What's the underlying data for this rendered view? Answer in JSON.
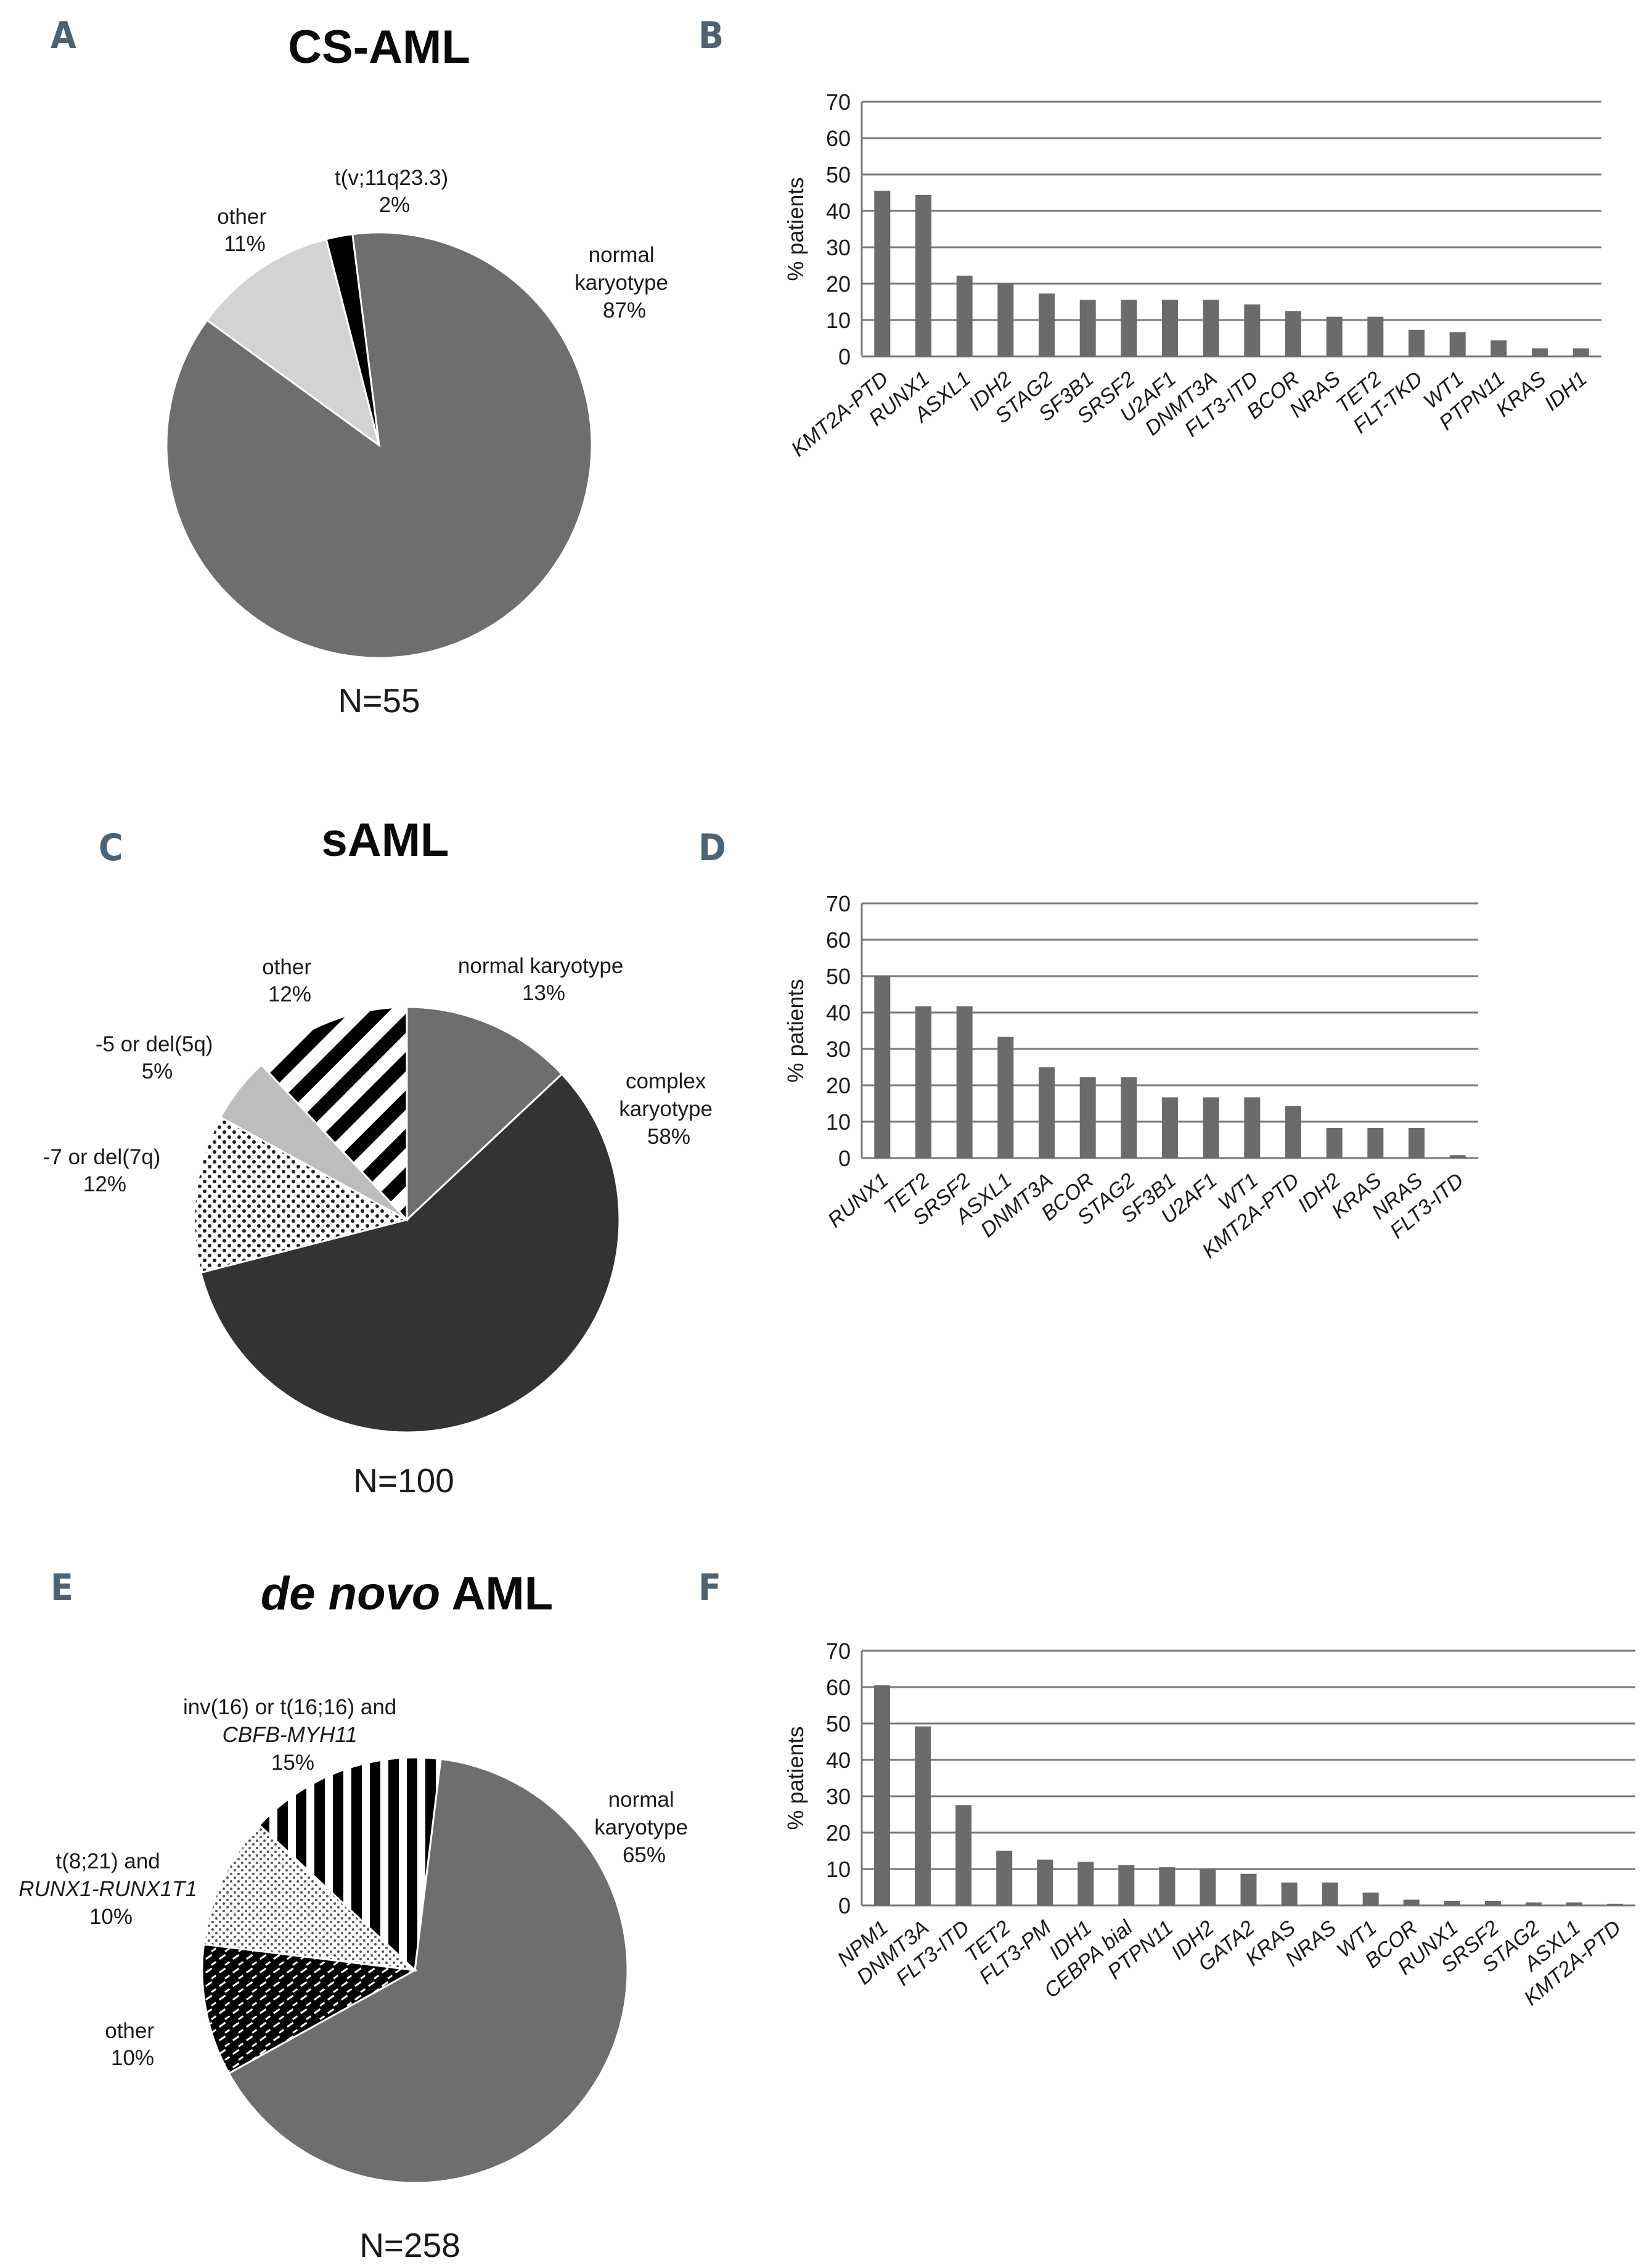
{
  "colors": {
    "bar": "#6b6b6b",
    "grid": "#7a7a7a",
    "pie_normal": "#6e6e6e",
    "pie_dark": "#333333",
    "pie_light": "#d3d3d3",
    "pie_black": "#000000",
    "pie_silver": "#bdbdbd",
    "panel_letter": "#4e6272"
  },
  "panels": {
    "a": {
      "letter": "A"
    },
    "b": {
      "letter": "B"
    },
    "c": {
      "letter": "C"
    },
    "d": {
      "letter": "D"
    },
    "e": {
      "letter": "E"
    },
    "f": {
      "letter": "F"
    }
  },
  "pie_a": {
    "title": "CS-AML",
    "n": "N=55",
    "slices": [
      {
        "name": "normal karyotype",
        "value": 87,
        "fill": "normal"
      },
      {
        "name": "other",
        "value": 11,
        "fill": "light"
      },
      {
        "name": "t(v;11q23.3)",
        "value": 2,
        "fill": "black"
      }
    ],
    "labels": {
      "normal_1": "normal",
      "normal_2": "karyotype",
      "normal_pct": "87%",
      "other_1": "other",
      "other_pct": "11%",
      "tv_1": "t(v;11q23.3)",
      "tv_pct": "2%"
    }
  },
  "pie_c": {
    "title": "sAML",
    "n": "N=100",
    "slices": [
      {
        "name": "normal karyotype",
        "value": 13,
        "fill": "normal"
      },
      {
        "name": "complex karyotype",
        "value": 58,
        "fill": "dark"
      },
      {
        "name": "-7 or del(7q)",
        "value": 12,
        "fill": "dots"
      },
      {
        "name": "-5 or del(5q)",
        "value": 5,
        "fill": "silver"
      },
      {
        "name": "other",
        "value": 12,
        "fill": "stripes"
      }
    ],
    "labels": {
      "normal_1": "normal karyotype",
      "normal_pct": "13%",
      "complex_1": "complex",
      "complex_2": "karyotype",
      "complex_pct": "58%",
      "del7_1": "-7 or del(7q)",
      "del7_pct": "12%",
      "del5_1": "-5 or del(5q)",
      "del5_pct": "5%",
      "other_1": "other",
      "other_pct": "12%"
    }
  },
  "pie_e": {
    "title_italic": "de novo",
    "title_rest": " AML",
    "n": "N=258",
    "slices": [
      {
        "name": "normal karyotype",
        "value": 65,
        "fill": "normal"
      },
      {
        "name": "other",
        "value": 10,
        "fill": "blackdots"
      },
      {
        "name": "t(8;21) and RUNX1-RUNX1T1",
        "value": 10,
        "fill": "fine"
      },
      {
        "name": "inv(16) or t(16;16) and CBFB-MYH11",
        "value": 15,
        "fill": "vstripes"
      }
    ],
    "labels": {
      "normal_1": "normal",
      "normal_2": "karyotype",
      "normal_pct": "65%",
      "other_1": "other",
      "other_pct": "10%",
      "t821_1": "t(8;21) and",
      "t821_2": "RUNX1-RUNX1T1",
      "t821_pct": "10%",
      "inv16_1": "inv(16) or t(16;16) and",
      "inv16_2": "CBFB-MYH11",
      "inv16_pct": "15%"
    }
  },
  "chart_data": [
    {
      "type": "bar",
      "panel": "B",
      "ylabel": "% patients",
      "ylim": [
        0,
        70
      ],
      "yticks": [
        0,
        10,
        20,
        30,
        40,
        50,
        60,
        70
      ],
      "grid": true,
      "categories": [
        "KMT2A-PTD",
        "RUNX1",
        "ASXL1",
        "IDH2",
        "STAG2",
        "SF3B1",
        "SRSF2",
        "U2AF1",
        "DNMT3A",
        "FLT3-ITD",
        "BCOR",
        "NRAS",
        "TET2",
        "FLT-TKD",
        "WT1",
        "PTPN11",
        "KRAS",
        "IDH1"
      ],
      "values": [
        45.5,
        44.4,
        22.2,
        20.0,
        17.3,
        15.6,
        15.6,
        15.6,
        15.6,
        14.3,
        12.5,
        10.9,
        10.9,
        7.3,
        6.7,
        4.4,
        2.2,
        2.2
      ]
    },
    {
      "type": "bar",
      "panel": "D",
      "ylabel": "% patients",
      "ylim": [
        0,
        70
      ],
      "yticks": [
        0,
        10,
        20,
        30,
        40,
        50,
        60,
        70
      ],
      "grid": true,
      "categories": [
        "RUNX1",
        "TET2",
        "SRSF2",
        "ASXL1",
        "DNMT3A",
        "BCOR",
        "STAG2",
        "SF3B1",
        "U2AF1",
        "WT1",
        "KMT2A-PTD",
        "IDH2",
        "KRAS",
        "NRAS",
        "FLT3-ITD"
      ],
      "values": [
        50.0,
        41.7,
        41.7,
        33.3,
        25.0,
        22.2,
        22.2,
        16.7,
        16.7,
        16.7,
        14.3,
        8.3,
        8.3,
        8.3,
        0.8
      ]
    },
    {
      "type": "bar",
      "panel": "F",
      "ylabel": "% patients",
      "ylim": [
        0,
        70
      ],
      "yticks": [
        0,
        10,
        20,
        30,
        40,
        50,
        60,
        70
      ],
      "grid": true,
      "categories": [
        "NPM1",
        "DNMT3A",
        "FLT3-ITD",
        "TET2",
        "FLT3-PM",
        "IDH1",
        "CEBPA bial",
        "PTPN11",
        "IDH2",
        "GATA2",
        "KRAS",
        "NRAS",
        "WT1",
        "BCOR",
        "RUNX1",
        "SRSF2",
        "STAG2",
        "ASXL1",
        "KMT2A-PTD"
      ],
      "values": [
        60.5,
        49.2,
        27.6,
        15.0,
        12.6,
        12.0,
        11.1,
        10.5,
        9.9,
        8.7,
        6.3,
        6.3,
        3.5,
        1.6,
        1.2,
        1.2,
        0.8,
        0.8,
        0.4
      ]
    }
  ]
}
